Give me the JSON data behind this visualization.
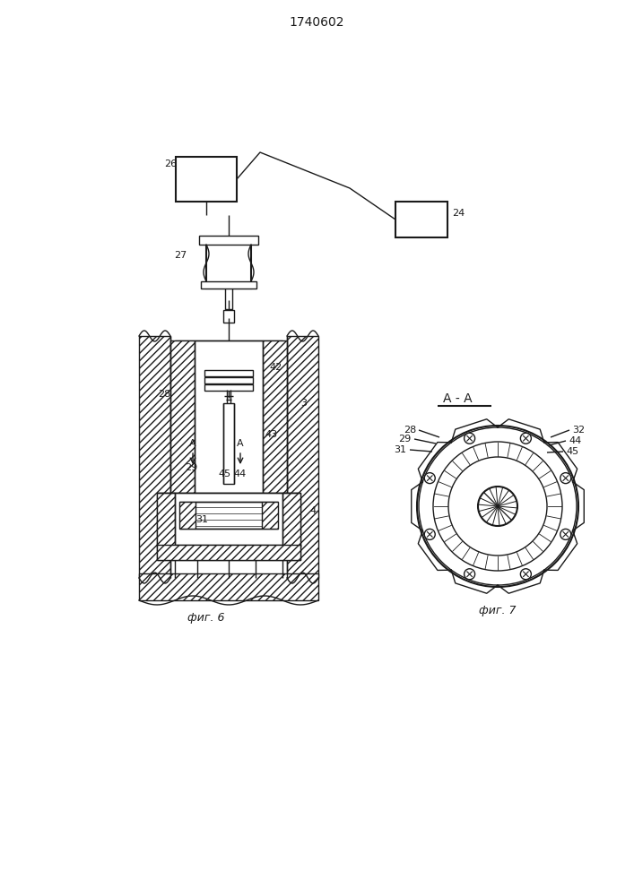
{
  "title": "1740602",
  "fig6_label": "фиг. 6",
  "fig7_label": "фиг. 7",
  "aa_label": "A - A",
  "background": "#ffffff",
  "line_color": "#1a1a1a"
}
